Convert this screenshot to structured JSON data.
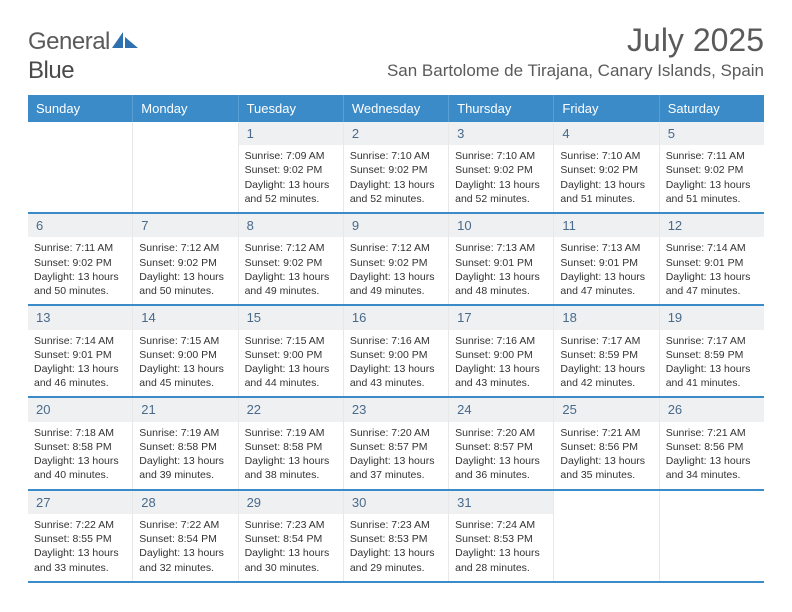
{
  "logo": {
    "text1": "General",
    "text2": "Blue"
  },
  "title": "July 2025",
  "location": "San Bartolome de Tirajana, Canary Islands, Spain",
  "weekdays": [
    "Sunday",
    "Monday",
    "Tuesday",
    "Wednesday",
    "Thursday",
    "Friday",
    "Saturday"
  ],
  "theme": {
    "header_bg": "#3b8bc9",
    "header_text": "#ffffff",
    "daynum_bg": "#eef0f2",
    "daynum_text": "#4a6a8a",
    "row_border": "#3b8bc9",
    "body_text": "#333333",
    "title_text": "#5a5a5a",
    "logo_triangle": "#2f71ae",
    "body_fontsize": 10.5
  },
  "weeks": [
    [
      null,
      null,
      {
        "n": "1",
        "sunrise": "7:09 AM",
        "sunset": "9:02 PM",
        "dh": "13",
        "dm": "52"
      },
      {
        "n": "2",
        "sunrise": "7:10 AM",
        "sunset": "9:02 PM",
        "dh": "13",
        "dm": "52"
      },
      {
        "n": "3",
        "sunrise": "7:10 AM",
        "sunset": "9:02 PM",
        "dh": "13",
        "dm": "52"
      },
      {
        "n": "4",
        "sunrise": "7:10 AM",
        "sunset": "9:02 PM",
        "dh": "13",
        "dm": "51"
      },
      {
        "n": "5",
        "sunrise": "7:11 AM",
        "sunset": "9:02 PM",
        "dh": "13",
        "dm": "51"
      }
    ],
    [
      {
        "n": "6",
        "sunrise": "7:11 AM",
        "sunset": "9:02 PM",
        "dh": "13",
        "dm": "50"
      },
      {
        "n": "7",
        "sunrise": "7:12 AM",
        "sunset": "9:02 PM",
        "dh": "13",
        "dm": "50"
      },
      {
        "n": "8",
        "sunrise": "7:12 AM",
        "sunset": "9:02 PM",
        "dh": "13",
        "dm": "49"
      },
      {
        "n": "9",
        "sunrise": "7:12 AM",
        "sunset": "9:02 PM",
        "dh": "13",
        "dm": "49"
      },
      {
        "n": "10",
        "sunrise": "7:13 AM",
        "sunset": "9:01 PM",
        "dh": "13",
        "dm": "48"
      },
      {
        "n": "11",
        "sunrise": "7:13 AM",
        "sunset": "9:01 PM",
        "dh": "13",
        "dm": "47"
      },
      {
        "n": "12",
        "sunrise": "7:14 AM",
        "sunset": "9:01 PM",
        "dh": "13",
        "dm": "47"
      }
    ],
    [
      {
        "n": "13",
        "sunrise": "7:14 AM",
        "sunset": "9:01 PM",
        "dh": "13",
        "dm": "46"
      },
      {
        "n": "14",
        "sunrise": "7:15 AM",
        "sunset": "9:00 PM",
        "dh": "13",
        "dm": "45"
      },
      {
        "n": "15",
        "sunrise": "7:15 AM",
        "sunset": "9:00 PM",
        "dh": "13",
        "dm": "44"
      },
      {
        "n": "16",
        "sunrise": "7:16 AM",
        "sunset": "9:00 PM",
        "dh": "13",
        "dm": "43"
      },
      {
        "n": "17",
        "sunrise": "7:16 AM",
        "sunset": "9:00 PM",
        "dh": "13",
        "dm": "43"
      },
      {
        "n": "18",
        "sunrise": "7:17 AM",
        "sunset": "8:59 PM",
        "dh": "13",
        "dm": "42"
      },
      {
        "n": "19",
        "sunrise": "7:17 AM",
        "sunset": "8:59 PM",
        "dh": "13",
        "dm": "41"
      }
    ],
    [
      {
        "n": "20",
        "sunrise": "7:18 AM",
        "sunset": "8:58 PM",
        "dh": "13",
        "dm": "40"
      },
      {
        "n": "21",
        "sunrise": "7:19 AM",
        "sunset": "8:58 PM",
        "dh": "13",
        "dm": "39"
      },
      {
        "n": "22",
        "sunrise": "7:19 AM",
        "sunset": "8:58 PM",
        "dh": "13",
        "dm": "38"
      },
      {
        "n": "23",
        "sunrise": "7:20 AM",
        "sunset": "8:57 PM",
        "dh": "13",
        "dm": "37"
      },
      {
        "n": "24",
        "sunrise": "7:20 AM",
        "sunset": "8:57 PM",
        "dh": "13",
        "dm": "36"
      },
      {
        "n": "25",
        "sunrise": "7:21 AM",
        "sunset": "8:56 PM",
        "dh": "13",
        "dm": "35"
      },
      {
        "n": "26",
        "sunrise": "7:21 AM",
        "sunset": "8:56 PM",
        "dh": "13",
        "dm": "34"
      }
    ],
    [
      {
        "n": "27",
        "sunrise": "7:22 AM",
        "sunset": "8:55 PM",
        "dh": "13",
        "dm": "33"
      },
      {
        "n": "28",
        "sunrise": "7:22 AM",
        "sunset": "8:54 PM",
        "dh": "13",
        "dm": "32"
      },
      {
        "n": "29",
        "sunrise": "7:23 AM",
        "sunset": "8:54 PM",
        "dh": "13",
        "dm": "30"
      },
      {
        "n": "30",
        "sunrise": "7:23 AM",
        "sunset": "8:53 PM",
        "dh": "13",
        "dm": "29"
      },
      {
        "n": "31",
        "sunrise": "7:24 AM",
        "sunset": "8:53 PM",
        "dh": "13",
        "dm": "28"
      },
      null,
      null
    ]
  ],
  "labels": {
    "sunrise": "Sunrise:",
    "sunset": "Sunset:",
    "daylight": "Daylight:",
    "hours": "hours",
    "and": "and",
    "minutes": "minutes."
  }
}
